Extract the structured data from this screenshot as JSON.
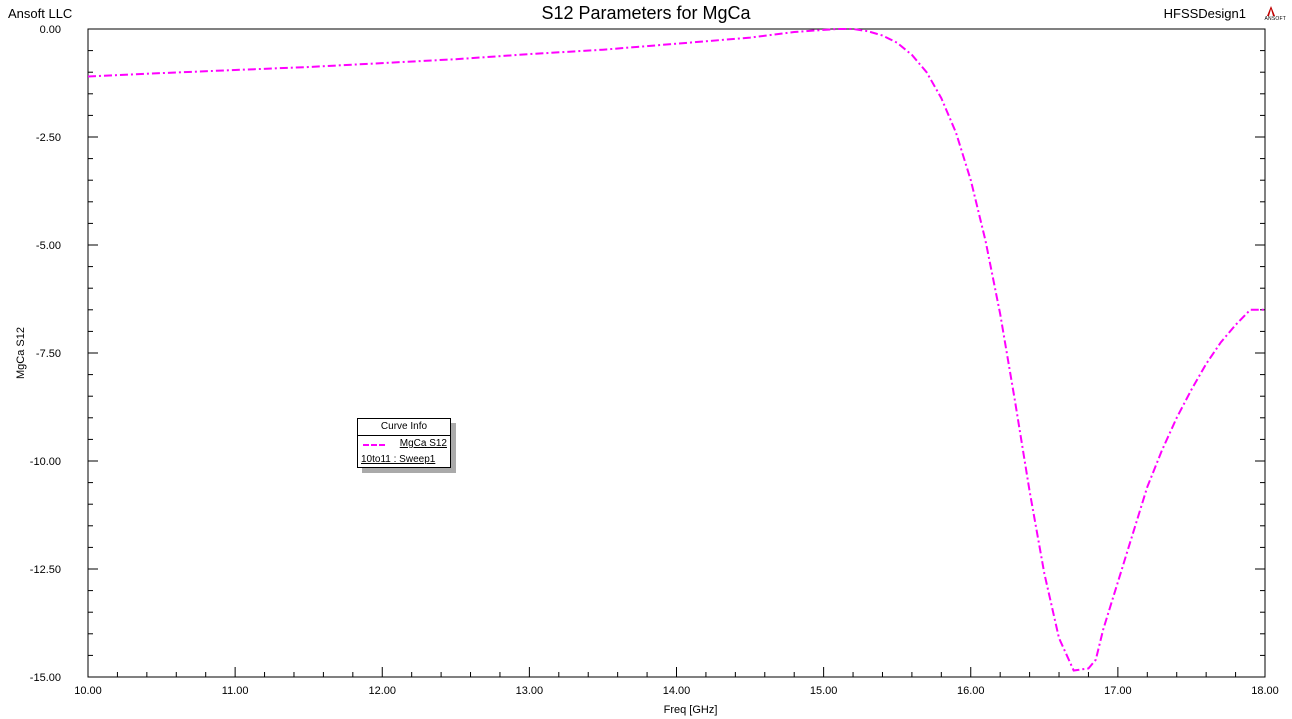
{
  "header": {
    "company": "Ansoft LLC",
    "design": "HFSSDesign1",
    "logo_text": "ANSOFT"
  },
  "legend": {
    "title": "Curve Info",
    "series_label": "MgCa S12",
    "context": "10to11 : Sweep1"
  },
  "colors": {
    "series": "#ff00ff",
    "axis": "#000000",
    "shadow": "#aaaaaa"
  },
  "chart_data": {
    "type": "line",
    "title": "S12 Parameters for MgCa",
    "xlabel": "Freq [GHz]",
    "ylabel": "MgCa S12",
    "xlim": [
      10,
      18
    ],
    "ylim": [
      -15,
      0
    ],
    "xticks": [
      "10.00",
      "11.00",
      "12.00",
      "13.00",
      "14.00",
      "15.00",
      "16.00",
      "17.00",
      "18.00"
    ],
    "yticks": [
      "0.00",
      "-2.50",
      "-5.00",
      "-7.50",
      "-10.00",
      "-12.50",
      "-15.00"
    ],
    "grid": false,
    "legend_position": "left-center",
    "series": [
      {
        "name": "MgCa S12",
        "line_style": "dash-dot",
        "x": [
          10.0,
          10.5,
          11.0,
          11.5,
          12.0,
          12.5,
          13.0,
          13.5,
          14.0,
          14.5,
          14.8,
          15.0,
          15.1,
          15.2,
          15.3,
          15.4,
          15.5,
          15.6,
          15.7,
          15.8,
          15.9,
          16.0,
          16.1,
          16.2,
          16.3,
          16.4,
          16.5,
          16.6,
          16.7,
          16.8,
          16.85,
          16.9,
          17.0,
          17.1,
          17.2,
          17.3,
          17.4,
          17.5,
          17.6,
          17.7,
          17.8,
          17.9,
          18.0
        ],
        "y": [
          -1.1,
          -1.02,
          -0.95,
          -0.88,
          -0.79,
          -0.7,
          -0.58,
          -0.48,
          -0.34,
          -0.2,
          -0.07,
          -0.02,
          0.0,
          0.0,
          -0.05,
          -0.15,
          -0.32,
          -0.6,
          -1.0,
          -1.6,
          -2.4,
          -3.5,
          -4.9,
          -6.6,
          -8.6,
          -10.7,
          -12.6,
          -14.1,
          -14.85,
          -14.8,
          -14.6,
          -13.9,
          -12.8,
          -11.7,
          -10.6,
          -9.75,
          -9.0,
          -8.35,
          -7.75,
          -7.25,
          -6.85,
          -6.5,
          -6.5
        ]
      }
    ]
  }
}
